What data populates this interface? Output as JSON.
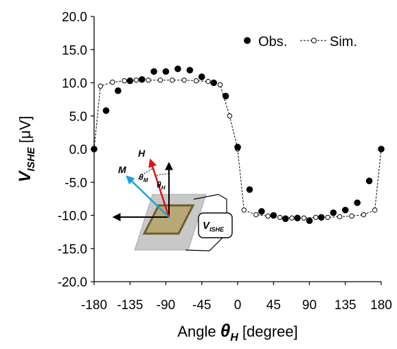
{
  "chart_data": {
    "type": "scatter",
    "xlabel_main": "Angle ",
    "xlabel_symbol": "θ",
    "xlabel_sub": "H",
    "xlabel_unit": " [degree]",
    "ylabel_symbol": "V",
    "ylabel_sub": "ISHE",
    "ylabel_unit": " [μV]",
    "xlim": [
      -180,
      180
    ],
    "ylim": [
      -20,
      20
    ],
    "xticks": [
      "-180",
      "-135",
      "-90",
      "-45",
      "0",
      "45",
      "90",
      "135",
      "180"
    ],
    "yticks": [
      "20.0",
      "15.0",
      "10.0",
      "5.0",
      "0.0",
      "-5.0",
      "-10.0",
      "-15.0",
      "-20.0"
    ],
    "legend_position": "top-right",
    "series": [
      {
        "name": "Obs.",
        "marker": "filled-circle",
        "points": [
          [
            -180,
            0.0
          ],
          [
            -165,
            5.8
          ],
          [
            -150,
            8.8
          ],
          [
            -135,
            10.3
          ],
          [
            -120,
            10.5
          ],
          [
            -105,
            11.7
          ],
          [
            -90,
            11.7
          ],
          [
            -75,
            12.1
          ],
          [
            -60,
            11.9
          ],
          [
            -45,
            10.9
          ],
          [
            -30,
            10.0
          ],
          [
            -15,
            8.0
          ],
          [
            0,
            0.3
          ],
          [
            15,
            -6.1
          ],
          [
            30,
            -9.4
          ],
          [
            45,
            -10.0
          ],
          [
            60,
            -10.5
          ],
          [
            75,
            -10.4
          ],
          [
            90,
            -10.8
          ],
          [
            105,
            -10.3
          ],
          [
            120,
            -9.6
          ],
          [
            135,
            -9.2
          ],
          [
            150,
            -8.1
          ],
          [
            165,
            -4.8
          ],
          [
            180,
            0.0
          ]
        ]
      },
      {
        "name": "Sim.",
        "marker": "open-circle-dashed-line",
        "points": [
          [
            -180,
            0.0
          ],
          [
            -172,
            9.5
          ],
          [
            -157,
            10.1
          ],
          [
            -142,
            10.3
          ],
          [
            -127,
            10.4
          ],
          [
            -112,
            10.4
          ],
          [
            -97,
            10.4
          ],
          [
            -82,
            10.4
          ],
          [
            -67,
            10.4
          ],
          [
            -52,
            10.3
          ],
          [
            -37,
            10.2
          ],
          [
            -22,
            9.7
          ],
          [
            -10,
            5.0
          ],
          [
            0,
            0.0
          ],
          [
            8,
            -9.2
          ],
          [
            23,
            -9.9
          ],
          [
            38,
            -10.1
          ],
          [
            53,
            -10.3
          ],
          [
            68,
            -10.4
          ],
          [
            83,
            -10.4
          ],
          [
            98,
            -10.3
          ],
          [
            113,
            -10.3
          ],
          [
            128,
            -10.2
          ],
          [
            143,
            -10.1
          ],
          [
            158,
            -9.9
          ],
          [
            172,
            -9.2
          ],
          [
            180,
            0.0
          ]
        ]
      }
    ],
    "inset": {
      "labels": {
        "h": "H",
        "m": "M",
        "theta_m": "θ",
        "theta_m_sub": "M",
        "theta_h": "θ",
        "theta_h_sub": "H",
        "v": "V",
        "v_sub": "ISHE"
      },
      "colors": {
        "h_arrow": "#e01010",
        "m_arrow": "#1aa0e0",
        "sample": "#b8a878",
        "sample_border": "#6e5e2a",
        "substrate": "#c8c8c8"
      }
    }
  }
}
